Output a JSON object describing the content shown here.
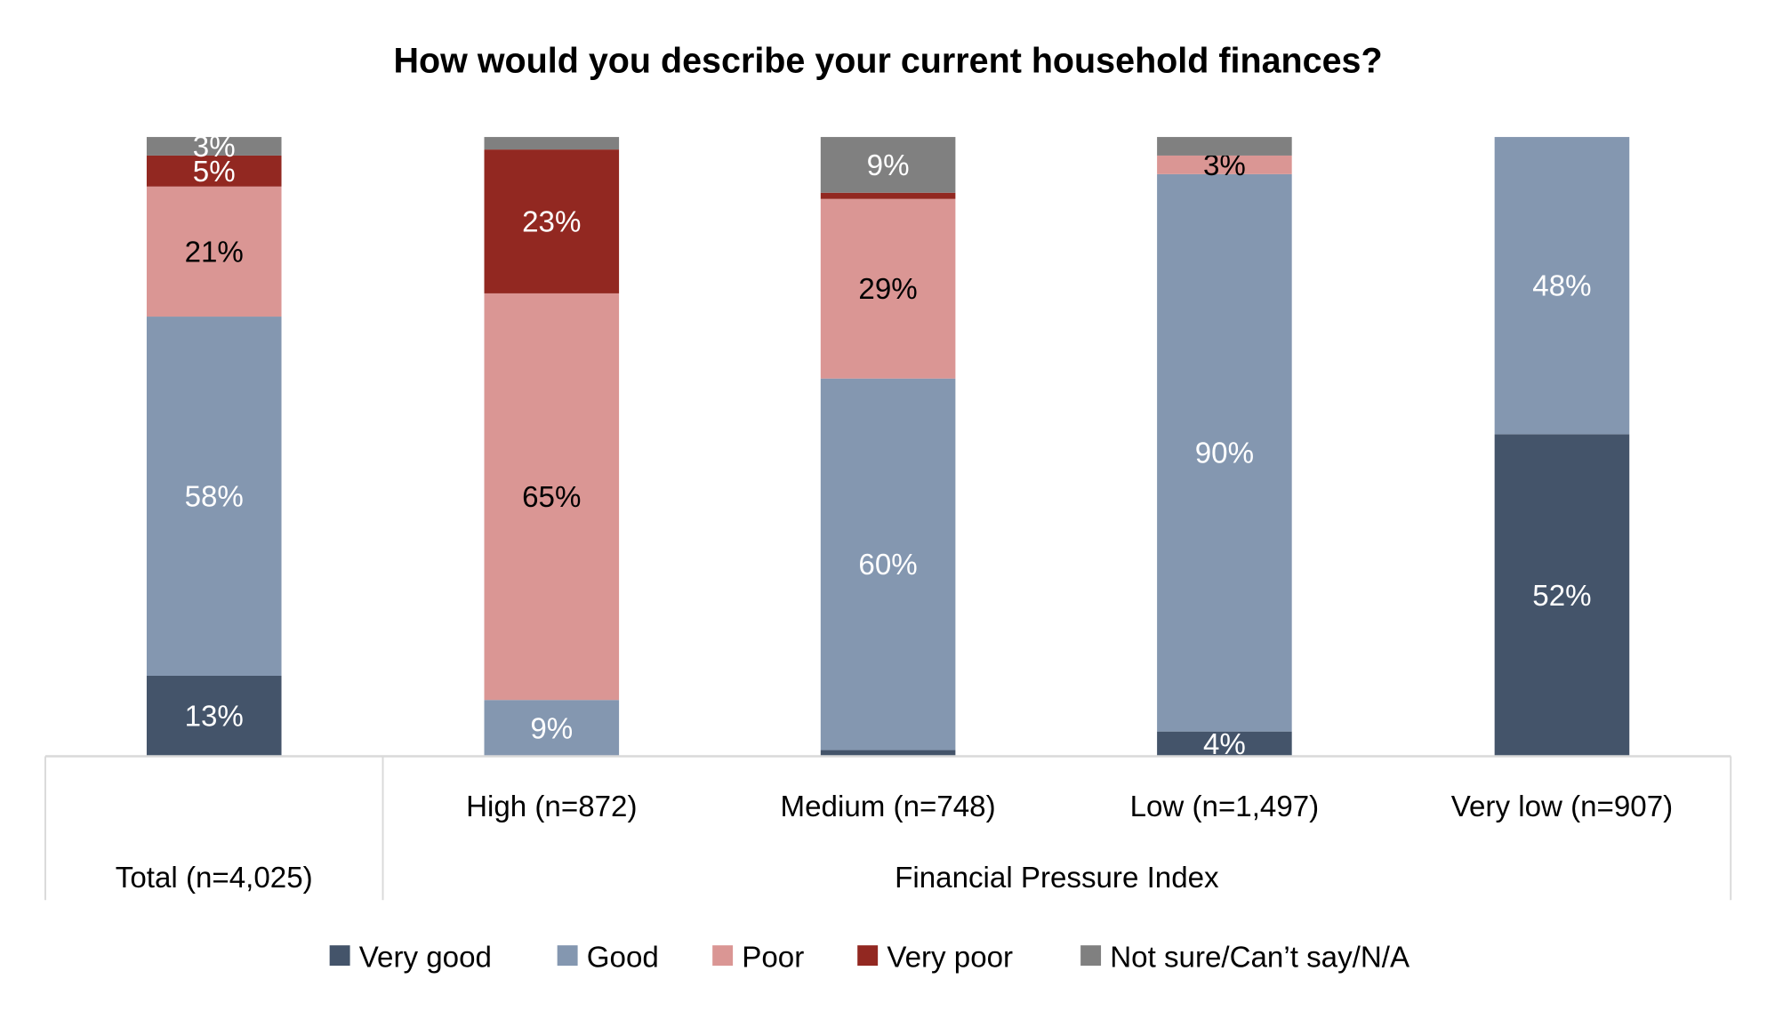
{
  "chart_data": {
    "type": "bar",
    "stacked": true,
    "title": "How would you describe your current household finances?",
    "categories": [
      "Total (n=4,025)",
      "High (n=872)",
      "Medium (n=748)",
      "Low (n=1,497)",
      "Very low (n=907)"
    ],
    "group_label": "Financial Pressure Index",
    "ylim": [
      0,
      100
    ],
    "grid": false,
    "legend_position": "bottom",
    "series": [
      {
        "name": "Very good",
        "color": "#44546a",
        "values": [
          13,
          0,
          1,
          4,
          52
        ],
        "labels": [
          "13%",
          null,
          null,
          "4%",
          "52%"
        ],
        "label_color": "#ffffff"
      },
      {
        "name": "Good",
        "color": "#8497b0",
        "values": [
          58,
          9,
          60,
          90,
          48
        ],
        "labels": [
          "58%",
          "9%",
          "60%",
          "90%",
          "48%"
        ],
        "label_color": "#ffffff"
      },
      {
        "name": "Poor",
        "color": "#da9694",
        "values": [
          21,
          65,
          29,
          3,
          0
        ],
        "labels": [
          "21%",
          "65%",
          "29%",
          "3%",
          null
        ],
        "label_color": "#000000"
      },
      {
        "name": "Very poor",
        "color": "#922821",
        "values": [
          5,
          23,
          1,
          0,
          0
        ],
        "labels": [
          "5%",
          "23%",
          null,
          null,
          null
        ],
        "label_color": "#ffffff"
      },
      {
        "name": "Not sure/Can’t say/N/A",
        "color": "#808080",
        "values": [
          3,
          2,
          9,
          3,
          0
        ],
        "labels": [
          "3%",
          null,
          "9%",
          null,
          null
        ],
        "label_color": "#ffffff"
      }
    ]
  }
}
